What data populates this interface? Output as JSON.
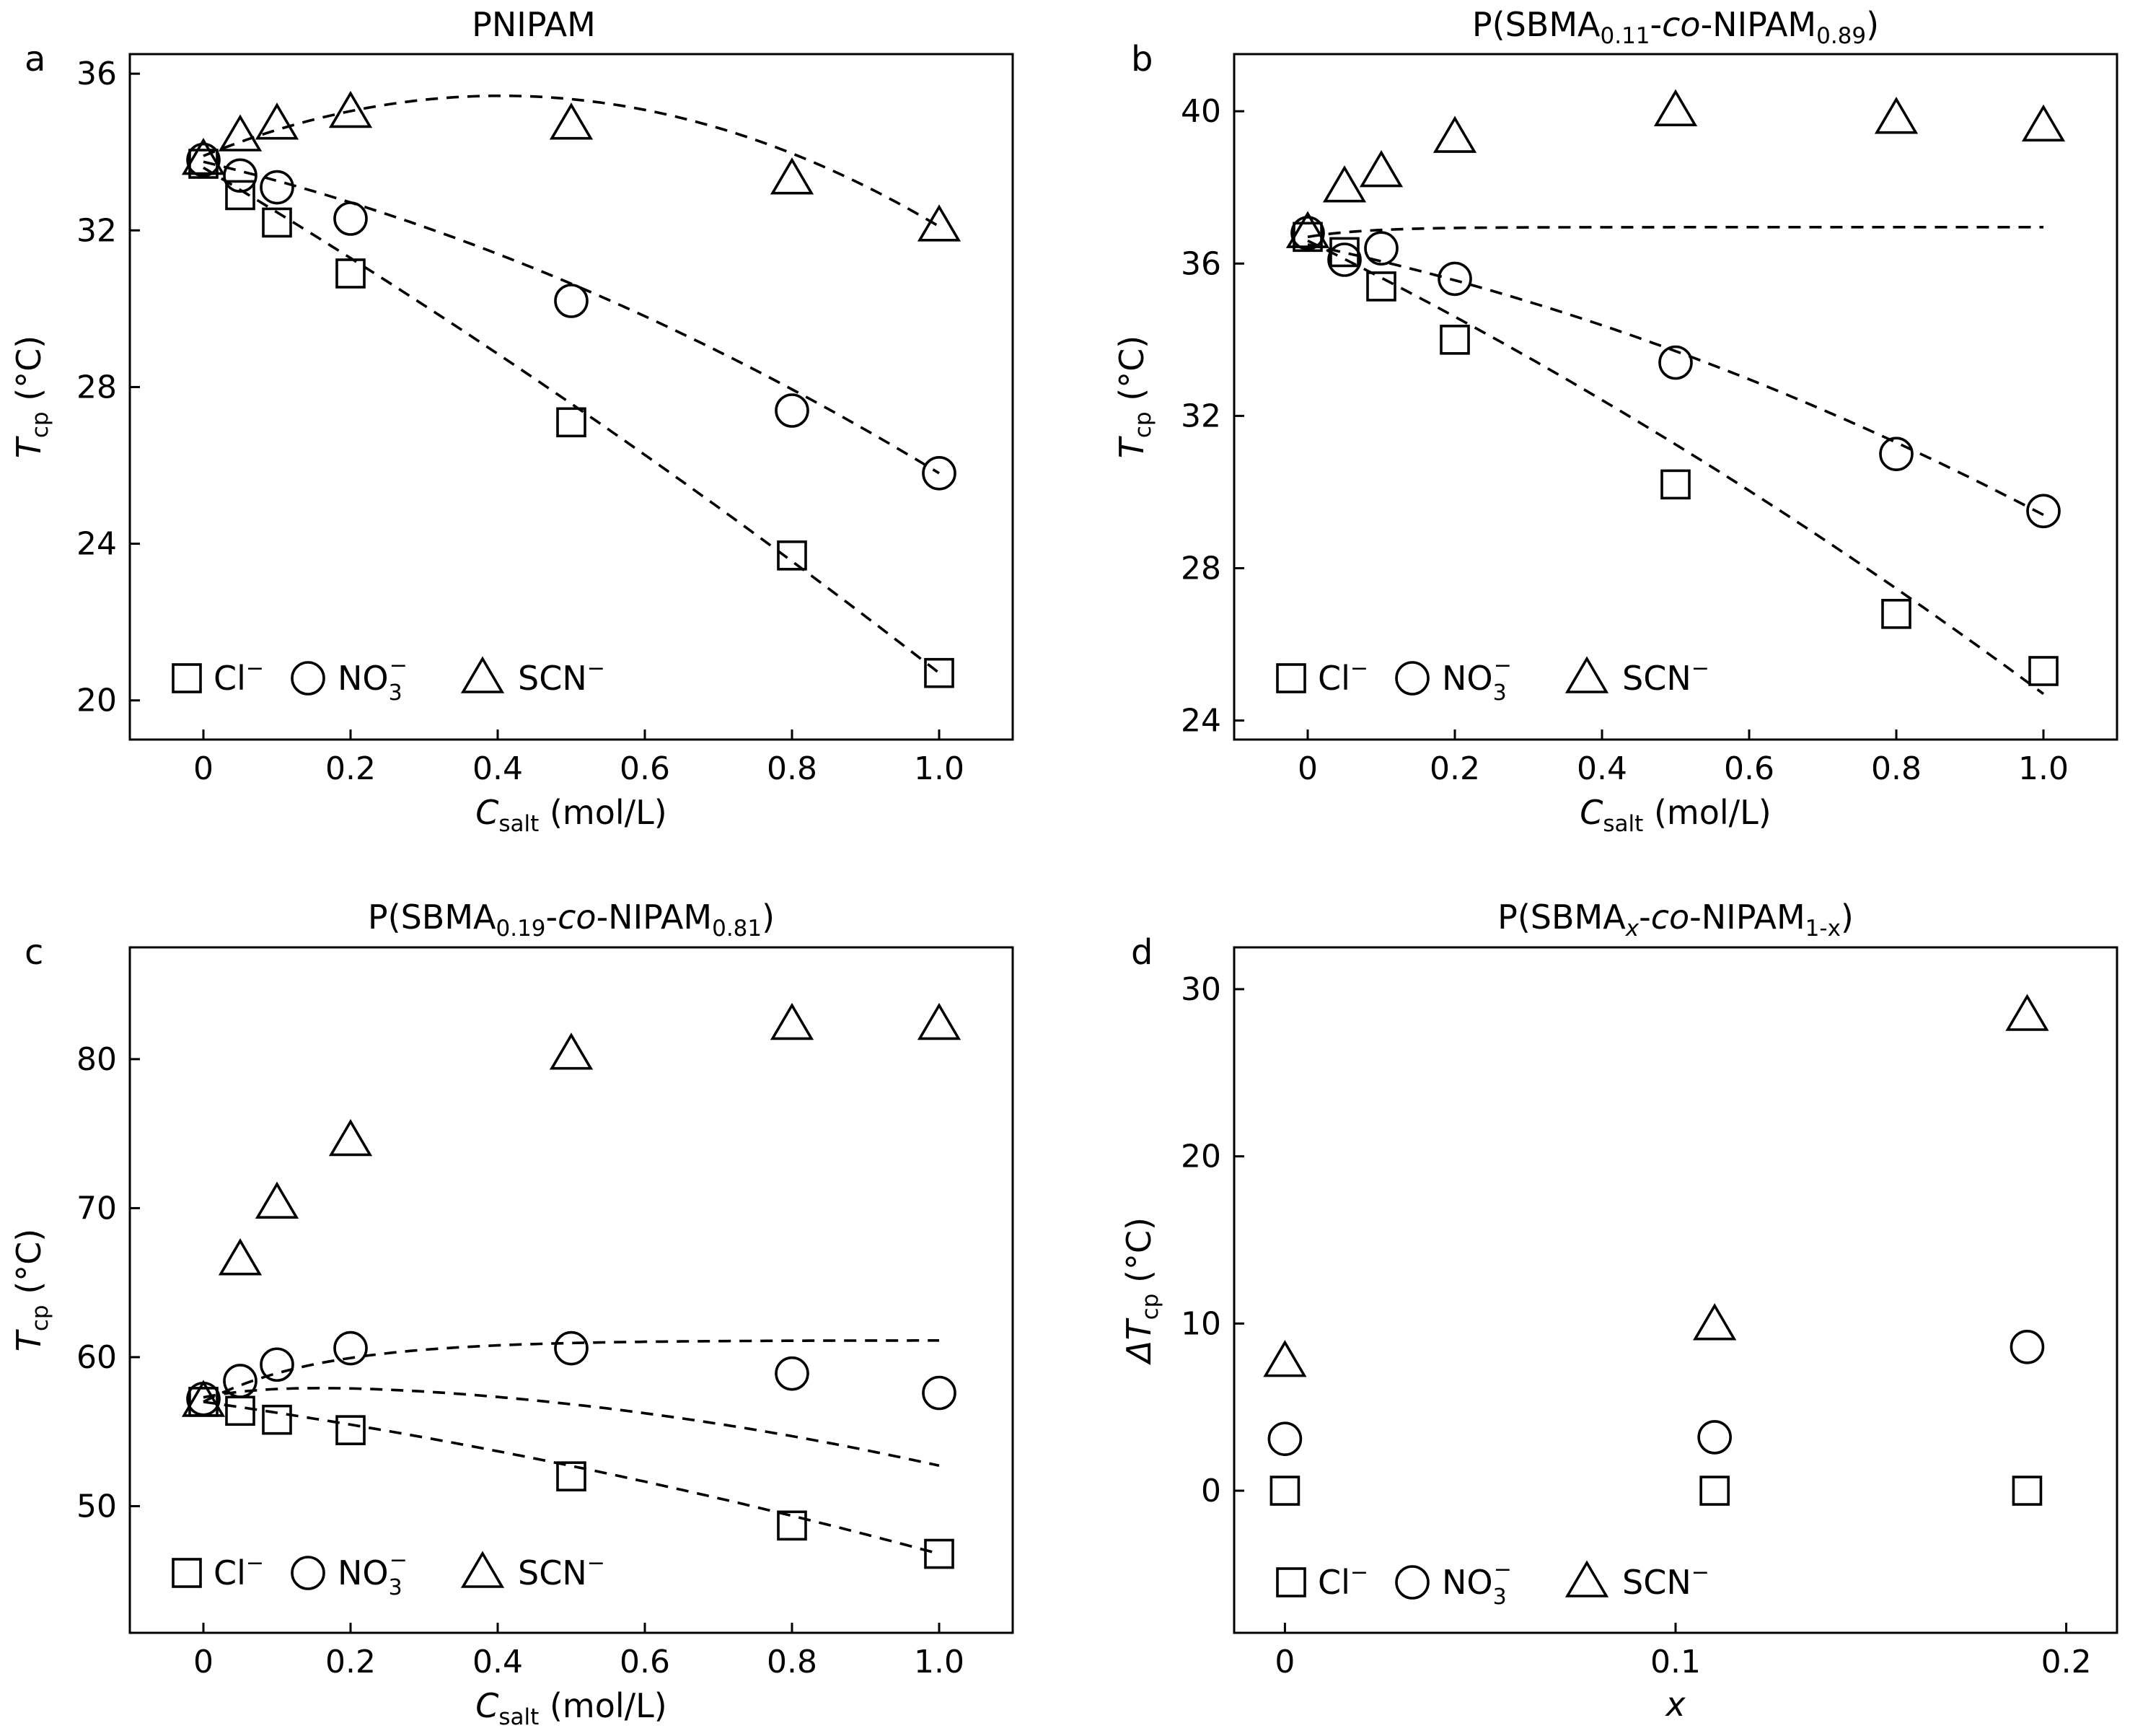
{
  "chart_data": [
    {
      "panel": "a",
      "type": "scatter",
      "title": "PNIPAM",
      "xlabel": {
        "main": "C",
        "sub": "salt",
        "rest": " (mol/L)"
      },
      "ylabel": {
        "main": "T",
        "sub": "cp",
        "rest": " (°C)"
      },
      "xlim": [
        -0.1,
        1.1
      ],
      "ylim": [
        19,
        36.5
      ],
      "xticks": [
        0,
        0.2,
        0.4,
        0.6,
        0.8,
        1.0
      ],
      "xtick_labels": [
        "0",
        "0.2",
        "0.4",
        "0.6",
        "0.8",
        "1.0"
      ],
      "yticks": [
        20,
        24,
        28,
        32,
        36
      ],
      "ytick_labels": [
        "20",
        "24",
        "28",
        "32",
        "36"
      ],
      "legend_position": "bottom-left",
      "series": [
        {
          "name": "Cl⁻",
          "marker": "square",
          "x": [
            0,
            0.05,
            0.1,
            0.2,
            0.5,
            0.8,
            1.0
          ],
          "values": [
            33.7,
            32.9,
            32.2,
            30.9,
            27.1,
            23.7,
            20.7
          ],
          "fit": [
            33.6,
            -11.2,
            -1.7
          ]
        },
        {
          "name": "NO₃⁻",
          "marker": "circle",
          "x": [
            0,
            0.05,
            0.1,
            0.2,
            0.5,
            0.8,
            1.0
          ],
          "values": [
            33.8,
            33.4,
            33.1,
            32.3,
            30.2,
            27.4,
            25.8
          ],
          "fit": [
            33.75,
            -4.5,
            -3.45
          ]
        },
        {
          "name": "SCN⁻",
          "marker": "triangle",
          "x": [
            0,
            0.05,
            0.1,
            0.2,
            0.5,
            0.8,
            1.0
          ],
          "values": [
            33.8,
            34.4,
            34.7,
            35.0,
            34.7,
            33.3,
            32.1
          ],
          "fit": [
            33.9,
            7.6,
            -9.4
          ]
        }
      ]
    },
    {
      "panel": "b",
      "type": "scatter",
      "title": {
        "pre": "P(SBMA",
        "sub1": "0.11",
        "mid": "-",
        "ital": "co",
        "mid2": "-NIPAM",
        "sub2": "0.89",
        "post": ")"
      },
      "xlabel": {
        "main": "C",
        "sub": "salt",
        "rest": " (mol/L)"
      },
      "ylabel": {
        "main": "T",
        "sub": "cp",
        "rest": " (°C)"
      },
      "xlim": [
        -0.1,
        1.1
      ],
      "ylim": [
        23.5,
        41.5
      ],
      "xticks": [
        0,
        0.2,
        0.4,
        0.6,
        0.8,
        1.0
      ],
      "xtick_labels": [
        "0",
        "0.2",
        "0.4",
        "0.6",
        "0.8",
        "1.0"
      ],
      "yticks": [
        24,
        28,
        32,
        36,
        40
      ],
      "ytick_labels": [
        "24",
        "28",
        "32",
        "36",
        "40"
      ],
      "legend_position": "bottom-left",
      "series": [
        {
          "name": "Cl⁻",
          "marker": "square",
          "x": [
            0,
            0.05,
            0.1,
            0.2,
            0.5,
            0.8,
            1.0
          ],
          "values": [
            36.7,
            36.3,
            35.4,
            34.0,
            30.2,
            26.8,
            25.3
          ],
          "fit": [
            36.6,
            -9.5,
            -2.4
          ]
        },
        {
          "name": "NO₃⁻",
          "marker": "circle",
          "x": [
            0,
            0.05,
            0.1,
            0.2,
            0.5,
            0.8,
            1.0
          ],
          "values": [
            36.8,
            36.1,
            36.4,
            35.6,
            33.4,
            31.0,
            29.5
          ],
          "fit": [
            36.5,
            -4.1,
            -3.0
          ]
        },
        {
          "name": "SCN⁻",
          "marker": "triangle",
          "x": [
            0,
            0.05,
            0.1,
            0.2,
            0.5,
            0.8,
            1.0
          ],
          "values": [
            36.8,
            38.0,
            38.4,
            39.3,
            40.0,
            39.8,
            39.6
          ],
          "fit": [
            36.7,
            3.2,
            0,
            0.08
          ]
        }
      ]
    },
    {
      "panel": "c",
      "type": "scatter",
      "title": {
        "pre": "P(SBMA",
        "sub1": "0.19",
        "mid": "-",
        "ital": "co",
        "mid2": "-NIPAM",
        "sub2": "0.81",
        "post": ")"
      },
      "xlabel": {
        "main": "C",
        "sub": "salt",
        "rest": " (mol/L)"
      },
      "ylabel": {
        "main": "T",
        "sub": "cp",
        "rest": " (°C)"
      },
      "xlim": [
        -0.1,
        1.1
      ],
      "ylim": [
        41.5,
        87.5
      ],
      "xticks": [
        0,
        0.2,
        0.4,
        0.6,
        0.8,
        1.0
      ],
      "xtick_labels": [
        "0",
        "0.2",
        "0.4",
        "0.6",
        "0.8",
        "1.0"
      ],
      "yticks": [
        50,
        60,
        70,
        80
      ],
      "ytick_labels": [
        "50",
        "60",
        "70",
        "80"
      ],
      "legend_position": "bottom-left",
      "series": [
        {
          "name": "Cl⁻",
          "marker": "square",
          "x": [
            0,
            0.05,
            0.1,
            0.2,
            0.5,
            0.8,
            1.0
          ],
          "values": [
            57.0,
            56.4,
            55.8,
            55.1,
            52.0,
            48.7,
            46.8
          ],
          "fit": [
            57.0,
            -7.0,
            -3.2
          ]
        },
        {
          "name": "NO₃⁻",
          "marker": "circle",
          "x": [
            0,
            0.05,
            0.1,
            0.2,
            0.5,
            0.8,
            1.0
          ],
          "values": [
            57.2,
            58.4,
            59.5,
            60.6,
            60.6,
            58.9,
            57.6
          ],
          "fit": [
            57.3,
            10.2,
            0,
            0.09,
            -5.5
          ]
        },
        {
          "name": "SCN⁻",
          "marker": "triangle",
          "x": [
            0,
            0.05,
            0.1,
            0.2,
            0.5,
            0.8,
            1.0
          ],
          "values": [
            57.0,
            66.5,
            70.3,
            74.5,
            80.3,
            82.3,
            82.3
          ],
          "fit": [
            57.0,
            25.8,
            0,
            0.16
          ]
        }
      ]
    },
    {
      "panel": "d",
      "type": "scatter",
      "title": {
        "pre": "P(SBMA",
        "sub1": "x",
        "mid": "-",
        "ital": "co",
        "mid2": "-NIPAM",
        "sub2": "1-x",
        "post": ")"
      },
      "xlabel": {
        "main": "x",
        "sub": "",
        "rest": ""
      },
      "ylabel": {
        "prefix": "ΔT",
        "sub": "cp",
        "rest": " (°C)"
      },
      "xlim": [
        -0.013,
        0.213
      ],
      "ylim": [
        -8.5,
        32.5
      ],
      "xticks": [
        0,
        0.1,
        0.2
      ],
      "xtick_labels": [
        "0",
        "0.1",
        "0.2"
      ],
      "yticks": [
        0,
        10,
        20,
        30
      ],
      "ytick_labels": [
        "0",
        "10",
        "20",
        "30"
      ],
      "legend_position": "bottom-left",
      "series": [
        {
          "name": "Cl⁻",
          "marker": "square",
          "x": [
            0,
            0.11,
            0.19
          ],
          "values": [
            0,
            0,
            0
          ]
        },
        {
          "name": "NO₃⁻",
          "marker": "circle",
          "x": [
            0,
            0.11,
            0.19
          ],
          "values": [
            3.1,
            3.2,
            8.6
          ]
        },
        {
          "name": "SCN⁻",
          "marker": "triangle",
          "x": [
            0,
            0.11,
            0.19
          ],
          "values": [
            7.7,
            9.9,
            28.4
          ]
        }
      ]
    }
  ],
  "panel_letters": [
    "a",
    "b",
    "c",
    "d"
  ],
  "legend": {
    "cl": "Cl",
    "cl_sup": "−",
    "no": "NO",
    "no_sub": "3",
    "no_sup": "−",
    "scn": "SCN",
    "scn_sup": "−"
  }
}
